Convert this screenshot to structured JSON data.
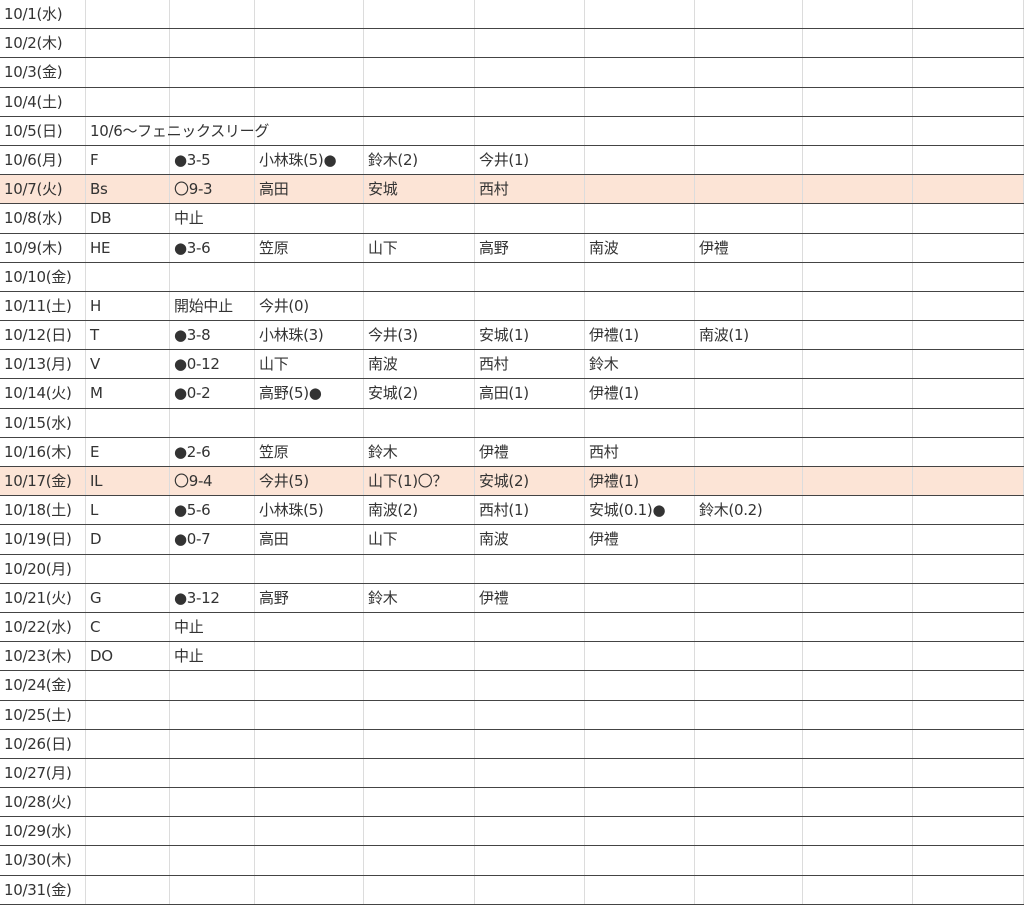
{
  "highlight_color": "#fce4d6",
  "rows": [
    {
      "cells": [
        "10/1(水)"
      ]
    },
    {
      "cells": [
        "10/2(木)"
      ]
    },
    {
      "cells": [
        "10/3(金)"
      ]
    },
    {
      "cells": [
        "10/4(土)"
      ]
    },
    {
      "cells": [
        "10/5(日)",
        "10/6〜フェニックスリーグ"
      ]
    },
    {
      "cells": [
        "10/6(月)",
        "F",
        "●3-5",
        "小林珠(5)●",
        "鈴木(2)",
        "今井(1)"
      ]
    },
    {
      "cells": [
        "10/7(火)",
        "Bs",
        "〇9-3",
        "高田",
        "安城",
        "西村"
      ],
      "highlighted": true
    },
    {
      "cells": [
        "10/8(水)",
        "DB",
        "中止"
      ]
    },
    {
      "cells": [
        "10/9(木)",
        "HE",
        "●3-6",
        "笠原",
        "山下",
        "高野",
        "南波",
        "伊禮"
      ]
    },
    {
      "cells": [
        "10/10(金)"
      ]
    },
    {
      "cells": [
        "10/11(土)",
        "H",
        "開始中止",
        "今井(0)"
      ]
    },
    {
      "cells": [
        "10/12(日)",
        "T",
        "●3-8",
        "小林珠(3)",
        "今井(3)",
        "安城(1)",
        "伊禮(1)",
        "南波(1)"
      ]
    },
    {
      "cells": [
        "10/13(月)",
        "V",
        "●0-12",
        "山下",
        "南波",
        "西村",
        "鈴木"
      ]
    },
    {
      "cells": [
        "10/14(火)",
        "M",
        "●0-2",
        "高野(5)●",
        "安城(2)",
        "高田(1)",
        "伊禮(1)"
      ]
    },
    {
      "cells": [
        "10/15(水)"
      ]
    },
    {
      "cells": [
        "10/16(木)",
        "E",
        "●2-6",
        "笠原",
        "鈴木",
        "伊禮",
        "西村"
      ]
    },
    {
      "cells": [
        "10/17(金)",
        "IL",
        "〇9-4",
        "今井(5)",
        "山下(1)〇？",
        "安城(2)",
        "伊禮(1)"
      ],
      "highlighted": true
    },
    {
      "cells": [
        "10/18(土)",
        "L",
        "●5-6",
        "小林珠(5)",
        "南波(2)",
        "西村(1)",
        "安城(0.1)●",
        "鈴木(0.2)"
      ]
    },
    {
      "cells": [
        "10/19(日)",
        "D",
        "●0-7",
        "高田",
        "山下",
        "南波",
        "伊禮"
      ]
    },
    {
      "cells": [
        "10/20(月)"
      ]
    },
    {
      "cells": [
        "10/21(火)",
        "G",
        "●3-12",
        "高野",
        "鈴木",
        "伊禮"
      ]
    },
    {
      "cells": [
        "10/22(水)",
        "C",
        "中止"
      ]
    },
    {
      "cells": [
        "10/23(木)",
        "DO",
        "中止"
      ]
    },
    {
      "cells": [
        "10/24(金)"
      ]
    },
    {
      "cells": [
        "10/25(土)"
      ]
    },
    {
      "cells": [
        "10/26(日)"
      ]
    },
    {
      "cells": [
        "10/27(月)"
      ]
    },
    {
      "cells": [
        "10/28(火)"
      ]
    },
    {
      "cells": [
        "10/29(水)"
      ]
    },
    {
      "cells": [
        "10/30(木)"
      ]
    },
    {
      "cells": [
        "10/31(金)"
      ]
    }
  ]
}
